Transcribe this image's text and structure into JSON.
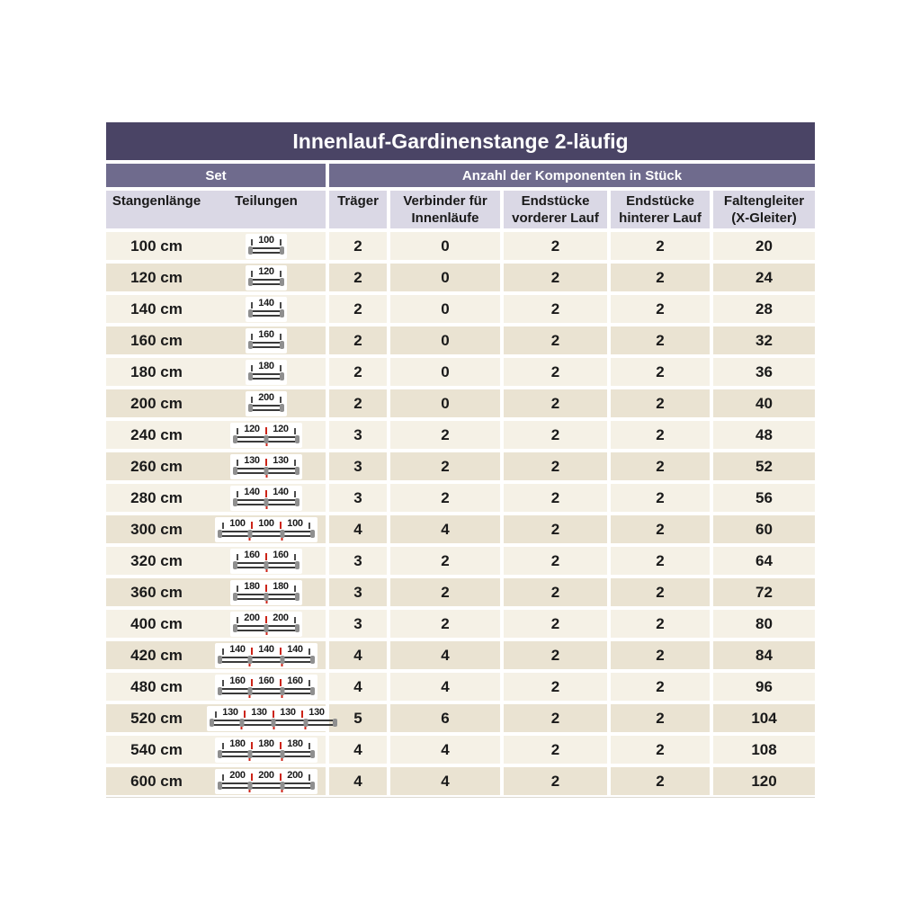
{
  "title": "Innenlauf-Gardinenstange 2-läufig",
  "group_headers": {
    "set": "Set",
    "components": "Anzahl der Komponenten in Stück"
  },
  "columns": {
    "stangenlaenge": "Stangenlänge",
    "teilungen": "Teilungen",
    "traeger": "Träger",
    "verbinder": "Verbinder für\nInnenläufe",
    "endstuecke_vorne": "Endstücke\nvorderer Lauf",
    "endstuecke_hinten": "Endstücke\nhinterer Lauf",
    "faltengleiter": "Faltengleiter\n(X-Gleiter)"
  },
  "rows": [
    {
      "stangenlaenge": "100 cm",
      "teilungen": [
        100
      ],
      "traeger": "2",
      "verbinder": "0",
      "endstuecke_vorne": "2",
      "endstuecke_hinten": "2",
      "faltengleiter": "20"
    },
    {
      "stangenlaenge": "120 cm",
      "teilungen": [
        120
      ],
      "traeger": "2",
      "verbinder": "0",
      "endstuecke_vorne": "2",
      "endstuecke_hinten": "2",
      "faltengleiter": "24"
    },
    {
      "stangenlaenge": "140 cm",
      "teilungen": [
        140
      ],
      "traeger": "2",
      "verbinder": "0",
      "endstuecke_vorne": "2",
      "endstuecke_hinten": "2",
      "faltengleiter": "28"
    },
    {
      "stangenlaenge": "160 cm",
      "teilungen": [
        160
      ],
      "traeger": "2",
      "verbinder": "0",
      "endstuecke_vorne": "2",
      "endstuecke_hinten": "2",
      "faltengleiter": "32"
    },
    {
      "stangenlaenge": "180 cm",
      "teilungen": [
        180
      ],
      "traeger": "2",
      "verbinder": "0",
      "endstuecke_vorne": "2",
      "endstuecke_hinten": "2",
      "faltengleiter": "36"
    },
    {
      "stangenlaenge": "200 cm",
      "teilungen": [
        200
      ],
      "traeger": "2",
      "verbinder": "0",
      "endstuecke_vorne": "2",
      "endstuecke_hinten": "2",
      "faltengleiter": "40"
    },
    {
      "stangenlaenge": "240 cm",
      "teilungen": [
        120,
        120
      ],
      "traeger": "3",
      "verbinder": "2",
      "endstuecke_vorne": "2",
      "endstuecke_hinten": "2",
      "faltengleiter": "48"
    },
    {
      "stangenlaenge": "260 cm",
      "teilungen": [
        130,
        130
      ],
      "traeger": "3",
      "verbinder": "2",
      "endstuecke_vorne": "2",
      "endstuecke_hinten": "2",
      "faltengleiter": "52"
    },
    {
      "stangenlaenge": "280 cm",
      "teilungen": [
        140,
        140
      ],
      "traeger": "3",
      "verbinder": "2",
      "endstuecke_vorne": "2",
      "endstuecke_hinten": "2",
      "faltengleiter": "56"
    },
    {
      "stangenlaenge": "300 cm",
      "teilungen": [
        100,
        100,
        100
      ],
      "traeger": "4",
      "verbinder": "4",
      "endstuecke_vorne": "2",
      "endstuecke_hinten": "2",
      "faltengleiter": "60"
    },
    {
      "stangenlaenge": "320 cm",
      "teilungen": [
        160,
        160
      ],
      "traeger": "3",
      "verbinder": "2",
      "endstuecke_vorne": "2",
      "endstuecke_hinten": "2",
      "faltengleiter": "64"
    },
    {
      "stangenlaenge": "360 cm",
      "teilungen": [
        180,
        180
      ],
      "traeger": "3",
      "verbinder": "2",
      "endstuecke_vorne": "2",
      "endstuecke_hinten": "2",
      "faltengleiter": "72"
    },
    {
      "stangenlaenge": "400 cm",
      "teilungen": [
        200,
        200
      ],
      "traeger": "3",
      "verbinder": "2",
      "endstuecke_vorne": "2",
      "endstuecke_hinten": "2",
      "faltengleiter": "80"
    },
    {
      "stangenlaenge": "420 cm",
      "teilungen": [
        140,
        140,
        140
      ],
      "traeger": "4",
      "verbinder": "4",
      "endstuecke_vorne": "2",
      "endstuecke_hinten": "2",
      "faltengleiter": "84"
    },
    {
      "stangenlaenge": "480 cm",
      "teilungen": [
        160,
        160,
        160
      ],
      "traeger": "4",
      "verbinder": "4",
      "endstuecke_vorne": "2",
      "endstuecke_hinten": "2",
      "faltengleiter": "96"
    },
    {
      "stangenlaenge": "520 cm",
      "teilungen": [
        130,
        130,
        130,
        130
      ],
      "traeger": "5",
      "verbinder": "6",
      "endstuecke_vorne": "2",
      "endstuecke_hinten": "2",
      "faltengleiter": "104"
    },
    {
      "stangenlaenge": "540 cm",
      "teilungen": [
        180,
        180,
        180
      ],
      "traeger": "4",
      "verbinder": "4",
      "endstuecke_vorne": "2",
      "endstuecke_hinten": "2",
      "faltengleiter": "108"
    },
    {
      "stangenlaenge": "600 cm",
      "teilungen": [
        200,
        200,
        200
      ],
      "traeger": "4",
      "verbinder": "4",
      "endstuecke_vorne": "2",
      "endstuecke_hinten": "2",
      "faltengleiter": "120"
    }
  ],
  "colors": {
    "title_bg": "#4a4465",
    "band_bg": "#6f6b8d",
    "colhead_bg": "#dad8e5",
    "row_light": "#f5f1e6",
    "row_dark": "#eae3d2",
    "text_dark": "#1a1a1a",
    "accent_red": "#cc2418",
    "rod_gray": "#8f8f8f",
    "rod_line": "#3a3a3a"
  }
}
